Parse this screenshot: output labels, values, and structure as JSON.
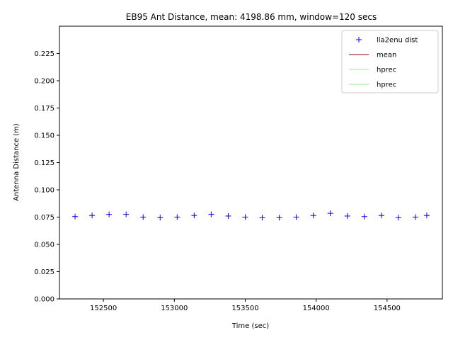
{
  "chart_data": {
    "type": "scatter",
    "title": "EB95 Ant Distance, mean: 4198.86 mm, window=120 secs",
    "xlabel": "Time (sec)",
    "ylabel": "Antenna Distance (m)",
    "xlim": [
      152190,
      154890
    ],
    "ylim": [
      0.0,
      0.25
    ],
    "xticks": [
      152500,
      153000,
      153500,
      154000,
      154500
    ],
    "yticks": [
      0.0,
      0.025,
      0.05,
      0.075,
      0.1,
      0.125,
      0.15,
      0.175,
      0.2,
      0.225
    ],
    "ytick_labels": [
      "0.000",
      "0.025",
      "0.050",
      "0.075",
      "0.100",
      "0.125",
      "0.150",
      "0.175",
      "0.200",
      "0.225"
    ],
    "grid": false,
    "legend_position": "top-right",
    "series": [
      {
        "name": "lla2enu dist",
        "marker": "+",
        "color": "#0000ff",
        "x": [
          152300,
          152420,
          152540,
          152660,
          152780,
          152900,
          153020,
          153140,
          153260,
          153380,
          153500,
          153620,
          153740,
          153860,
          153980,
          154100,
          154220,
          154340,
          154460,
          154580,
          154700,
          154780
        ],
        "y": [
          0.0755,
          0.0765,
          0.0775,
          0.0775,
          0.075,
          0.0745,
          0.075,
          0.0765,
          0.0775,
          0.076,
          0.075,
          0.0745,
          0.0745,
          0.075,
          0.0765,
          0.0785,
          0.076,
          0.0755,
          0.0765,
          0.0745,
          0.075,
          0.0765
        ]
      },
      {
        "name": "mean",
        "color": "#8b0000",
        "line": true,
        "values": []
      },
      {
        "name": "hprec",
        "color": "#90ee90",
        "line": true,
        "values": []
      },
      {
        "name": "hprec",
        "color": "#90ee90",
        "line": true,
        "values": []
      }
    ]
  }
}
